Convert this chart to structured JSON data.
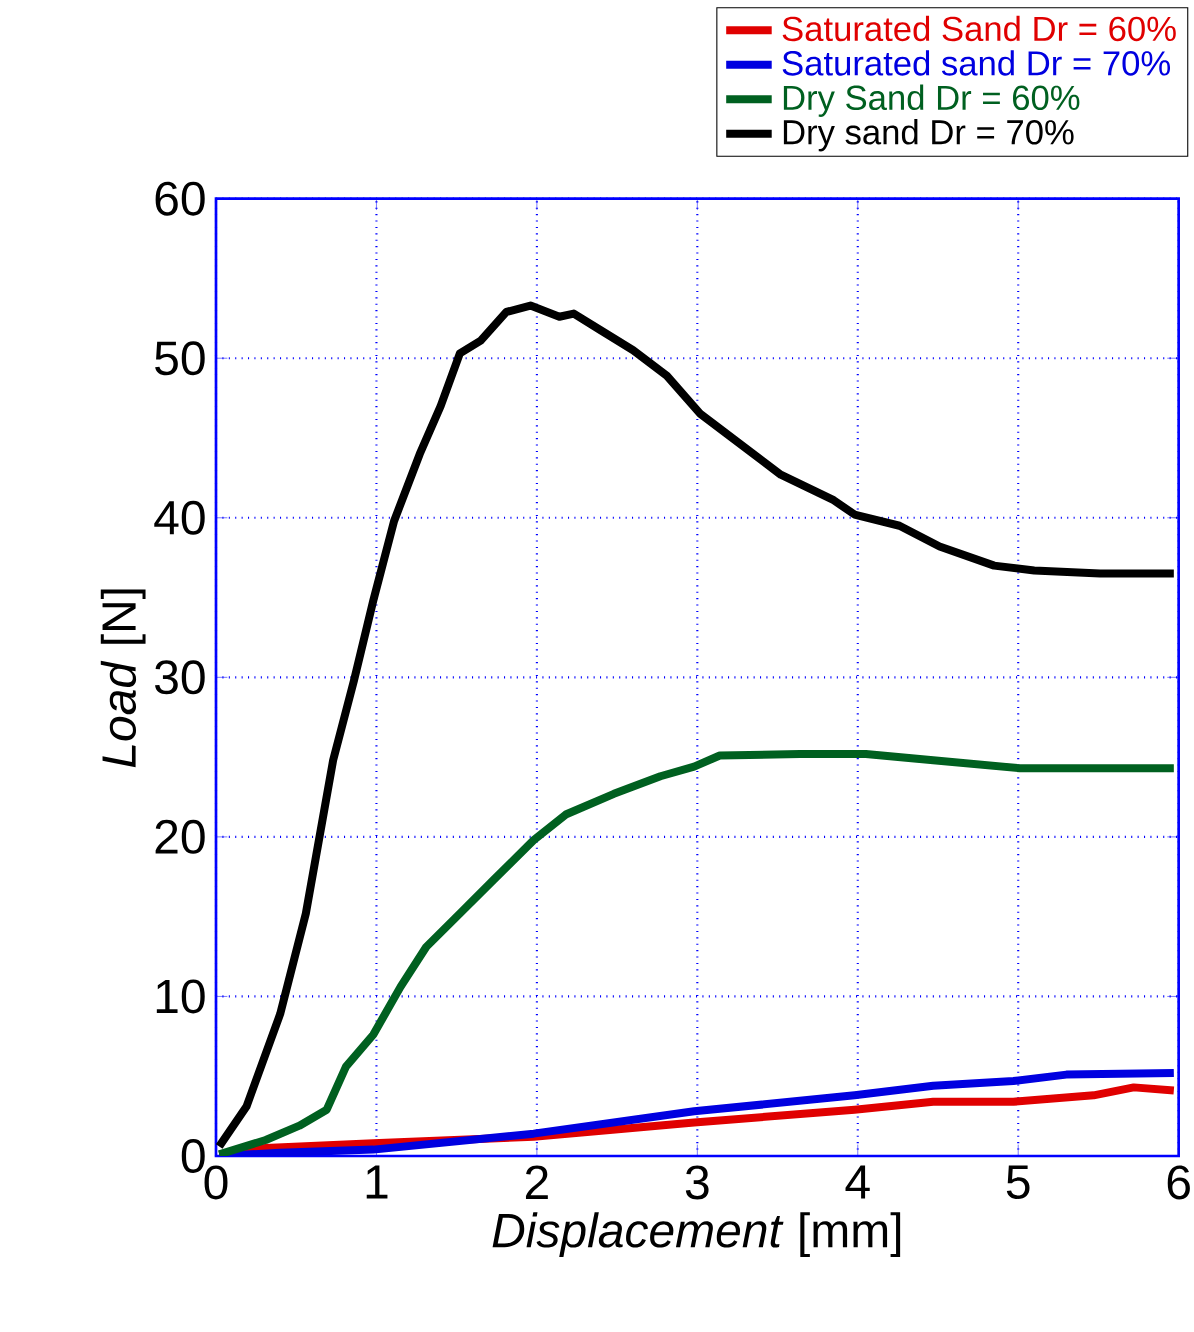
{
  "chart_data": {
    "type": "line",
    "xlabel": "*Displacement* [mm]",
    "ylabel": "*Load* [N]",
    "xlim": [
      0,
      6
    ],
    "ylim": [
      0,
      60
    ],
    "xticks": [
      0,
      1,
      2,
      3,
      4,
      5,
      6
    ],
    "yticks": [
      0,
      10,
      20,
      30,
      40,
      50,
      60
    ],
    "grid": true,
    "legend": "top right",
    "marker": "none",
    "line_style": "solid",
    "series": [
      {
        "name": "Saturated Sand Dr = 60%",
        "color": "#e00000",
        "x": [
          0.02,
          0.31,
          0.98,
          1.98,
          2.98,
          3.98,
          4.47,
          4.97,
          5.47,
          5.72,
          5.97
        ],
        "values": [
          0.1,
          0.5,
          0.8,
          1.2,
          2.1,
          2.9,
          3.4,
          3.4,
          3.8,
          4.3,
          4.1
        ]
      },
      {
        "name": "Saturated sand Dr = 70%",
        "color": "#0000e0",
        "x": [
          0.02,
          0.4,
          0.98,
          1.98,
          2.98,
          3.98,
          4.47,
          4.97,
          5.3,
          5.97
        ],
        "values": [
          0.0,
          0.2,
          0.4,
          1.4,
          2.8,
          3.8,
          4.4,
          4.7,
          5.1,
          5.2
        ]
      },
      {
        "name": "Dry Sand Dr = 60%",
        "color": "#006020",
        "x": [
          0.02,
          0.31,
          0.52,
          0.69,
          0.81,
          0.98,
          1.15,
          1.31,
          1.52,
          1.73,
          1.98,
          2.18,
          2.48,
          2.77,
          2.98,
          3.14,
          3.64,
          4.05,
          4.47,
          5.01,
          5.97
        ],
        "values": [
          0.1,
          1.0,
          1.9,
          2.9,
          5.6,
          7.6,
          10.6,
          13.1,
          15.2,
          17.3,
          19.8,
          21.4,
          22.7,
          23.8,
          24.4,
          25.1,
          25.2,
          25.2,
          24.8,
          24.3,
          24.3
        ]
      },
      {
        "name": "Dry sand Dr = 70%",
        "color": "#000000",
        "x": [
          0.02,
          0.19,
          0.4,
          0.56,
          0.73,
          0.86,
          0.98,
          1.11,
          1.27,
          1.4,
          1.52,
          1.65,
          1.81,
          1.96,
          2.14,
          2.23,
          2.39,
          2.6,
          2.81,
          3.02,
          3.27,
          3.52,
          3.85,
          3.98,
          4.26,
          4.51,
          4.85,
          5.1,
          5.51,
          5.97
        ],
        "values": [
          0.6,
          3.1,
          8.9,
          15.2,
          24.8,
          29.8,
          34.8,
          39.8,
          44.0,
          47.0,
          50.3,
          51.1,
          52.9,
          53.3,
          52.6,
          52.8,
          51.8,
          50.5,
          48.9,
          46.5,
          44.6,
          42.7,
          41.1,
          40.2,
          39.5,
          38.2,
          37.0,
          36.7,
          36.5,
          36.5
        ]
      }
    ]
  }
}
